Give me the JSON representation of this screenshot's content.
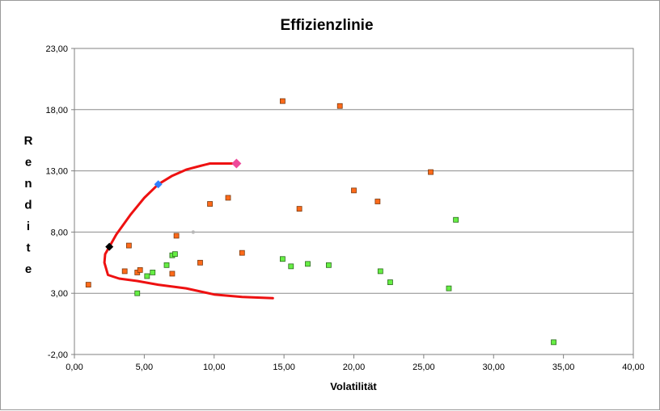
{
  "chart_data": {
    "type": "scatter",
    "title": "Effizienzlinie",
    "xlabel": "Volatilität",
    "ylabel": "Rendite",
    "xlim": [
      0,
      40
    ],
    "ylim": [
      -2,
      23
    ],
    "x_ticks": [
      "0,00",
      "5,00",
      "10,00",
      "15,00",
      "20,00",
      "25,00",
      "30,00",
      "35,00",
      "40,00"
    ],
    "y_ticks": [
      "-2,00",
      "3,00",
      "8,00",
      "13,00",
      "18,00",
      "23,00"
    ],
    "grid": "horizontal",
    "colors": {
      "orange": "#ff6a1a",
      "green": "#66ee44",
      "curve": "#ee1111",
      "black_point": "#000000",
      "blue_point": "#2f7fff",
      "pink_point": "#ee4a9a",
      "gray_point": "#b8b8b8"
    },
    "series": [
      {
        "marker": "orange-square",
        "x": [
          1.0,
          3.6,
          3.9,
          4.5,
          4.7,
          7.0,
          7.3,
          9.0,
          9.7,
          11.0,
          12.0,
          14.9,
          16.1,
          19.0,
          20.0,
          21.7,
          25.5
        ],
        "y": [
          3.7,
          4.8,
          6.9,
          4.7,
          4.9,
          4.6,
          7.7,
          5.5,
          10.3,
          10.8,
          6.3,
          18.7,
          9.9,
          18.3,
          11.4,
          10.5,
          12.9
        ]
      },
      {
        "marker": "green-square",
        "x": [
          4.5,
          5.2,
          5.6,
          6.6,
          7.0,
          7.2,
          14.9,
          15.5,
          16.7,
          18.2,
          21.9,
          22.6,
          26.8,
          27.3,
          34.3
        ],
        "y": [
          3.0,
          4.4,
          4.7,
          5.3,
          6.1,
          6.2,
          5.8,
          5.2,
          5.4,
          5.3,
          4.8,
          3.9,
          3.4,
          9.0,
          -1.0
        ]
      },
      {
        "marker": "red-curve",
        "x": [
          14.2,
          12.0,
          10.0,
          8.0,
          6.0,
          4.5,
          3.2,
          2.4,
          2.15,
          2.2,
          2.5,
          3.0,
          4.0,
          5.0,
          6.0,
          7.0,
          8.0,
          9.0,
          9.7,
          11.0,
          11.6
        ],
        "y": [
          2.6,
          2.7,
          2.9,
          3.4,
          3.7,
          4.0,
          4.2,
          4.5,
          5.5,
          6.2,
          6.8,
          7.8,
          9.4,
          10.8,
          11.9,
          12.6,
          13.1,
          13.4,
          13.6,
          13.6,
          13.6
        ]
      },
      {
        "marker": "black-diamond",
        "x": [
          2.5
        ],
        "y": [
          6.8
        ]
      },
      {
        "marker": "blue-diamond",
        "x": [
          6.0
        ],
        "y": [
          11.9
        ]
      },
      {
        "marker": "pink-diamond",
        "x": [
          11.6
        ],
        "y": [
          13.6
        ]
      },
      {
        "marker": "gray-dot",
        "x": [
          8.5
        ],
        "y": [
          8.0
        ]
      }
    ]
  }
}
